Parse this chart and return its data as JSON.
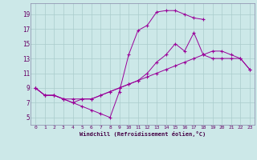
{
  "xlabel": "Windchill (Refroidissement éolien,°C)",
  "background_color": "#cce8e8",
  "grid_color": "#aacccc",
  "line_color": "#990099",
  "xlim": [
    -0.5,
    23.5
  ],
  "ylim": [
    4.0,
    20.5
  ],
  "xticks": [
    0,
    1,
    2,
    3,
    4,
    5,
    6,
    7,
    8,
    9,
    10,
    11,
    12,
    13,
    14,
    15,
    16,
    17,
    18,
    19,
    20,
    21,
    22,
    23
  ],
  "yticks": [
    5,
    7,
    9,
    11,
    13,
    15,
    17,
    19
  ],
  "line3_x": [
    0,
    1,
    2,
    3,
    4,
    5,
    6,
    7,
    8,
    9,
    10,
    11,
    12,
    13,
    14,
    15,
    16,
    17,
    18
  ],
  "line3_y": [
    9.0,
    8.0,
    8.0,
    7.5,
    7.0,
    6.5,
    6.0,
    5.5,
    5.0,
    8.5,
    13.5,
    16.8,
    17.5,
    19.3,
    19.5,
    19.5,
    19.0,
    18.5,
    18.3
  ],
  "line1_x": [
    0,
    1,
    2,
    3,
    4,
    5,
    6,
    7,
    8,
    9,
    10,
    11,
    12,
    13,
    14,
    15,
    16,
    17,
    18,
    19,
    20,
    21,
    22,
    23
  ],
  "line1_y": [
    9.0,
    8.0,
    8.0,
    7.5,
    7.0,
    7.5,
    7.5,
    8.0,
    8.5,
    9.0,
    9.5,
    10.0,
    11.0,
    12.5,
    13.5,
    15.0,
    14.0,
    16.5,
    13.5,
    13.0,
    13.0,
    13.0,
    13.0,
    11.5
  ],
  "line2_x": [
    0,
    1,
    2,
    3,
    4,
    5,
    6,
    7,
    8,
    9,
    10,
    11,
    12,
    13,
    14,
    15,
    16,
    17,
    18,
    19,
    20,
    21,
    22,
    23
  ],
  "line2_y": [
    9.0,
    8.0,
    8.0,
    7.5,
    7.5,
    7.5,
    7.5,
    8.0,
    8.5,
    9.0,
    9.5,
    10.0,
    10.5,
    11.0,
    11.5,
    12.0,
    12.5,
    13.0,
    13.5,
    14.0,
    14.0,
    13.5,
    13.0,
    11.5
  ],
  "marker": "+"
}
